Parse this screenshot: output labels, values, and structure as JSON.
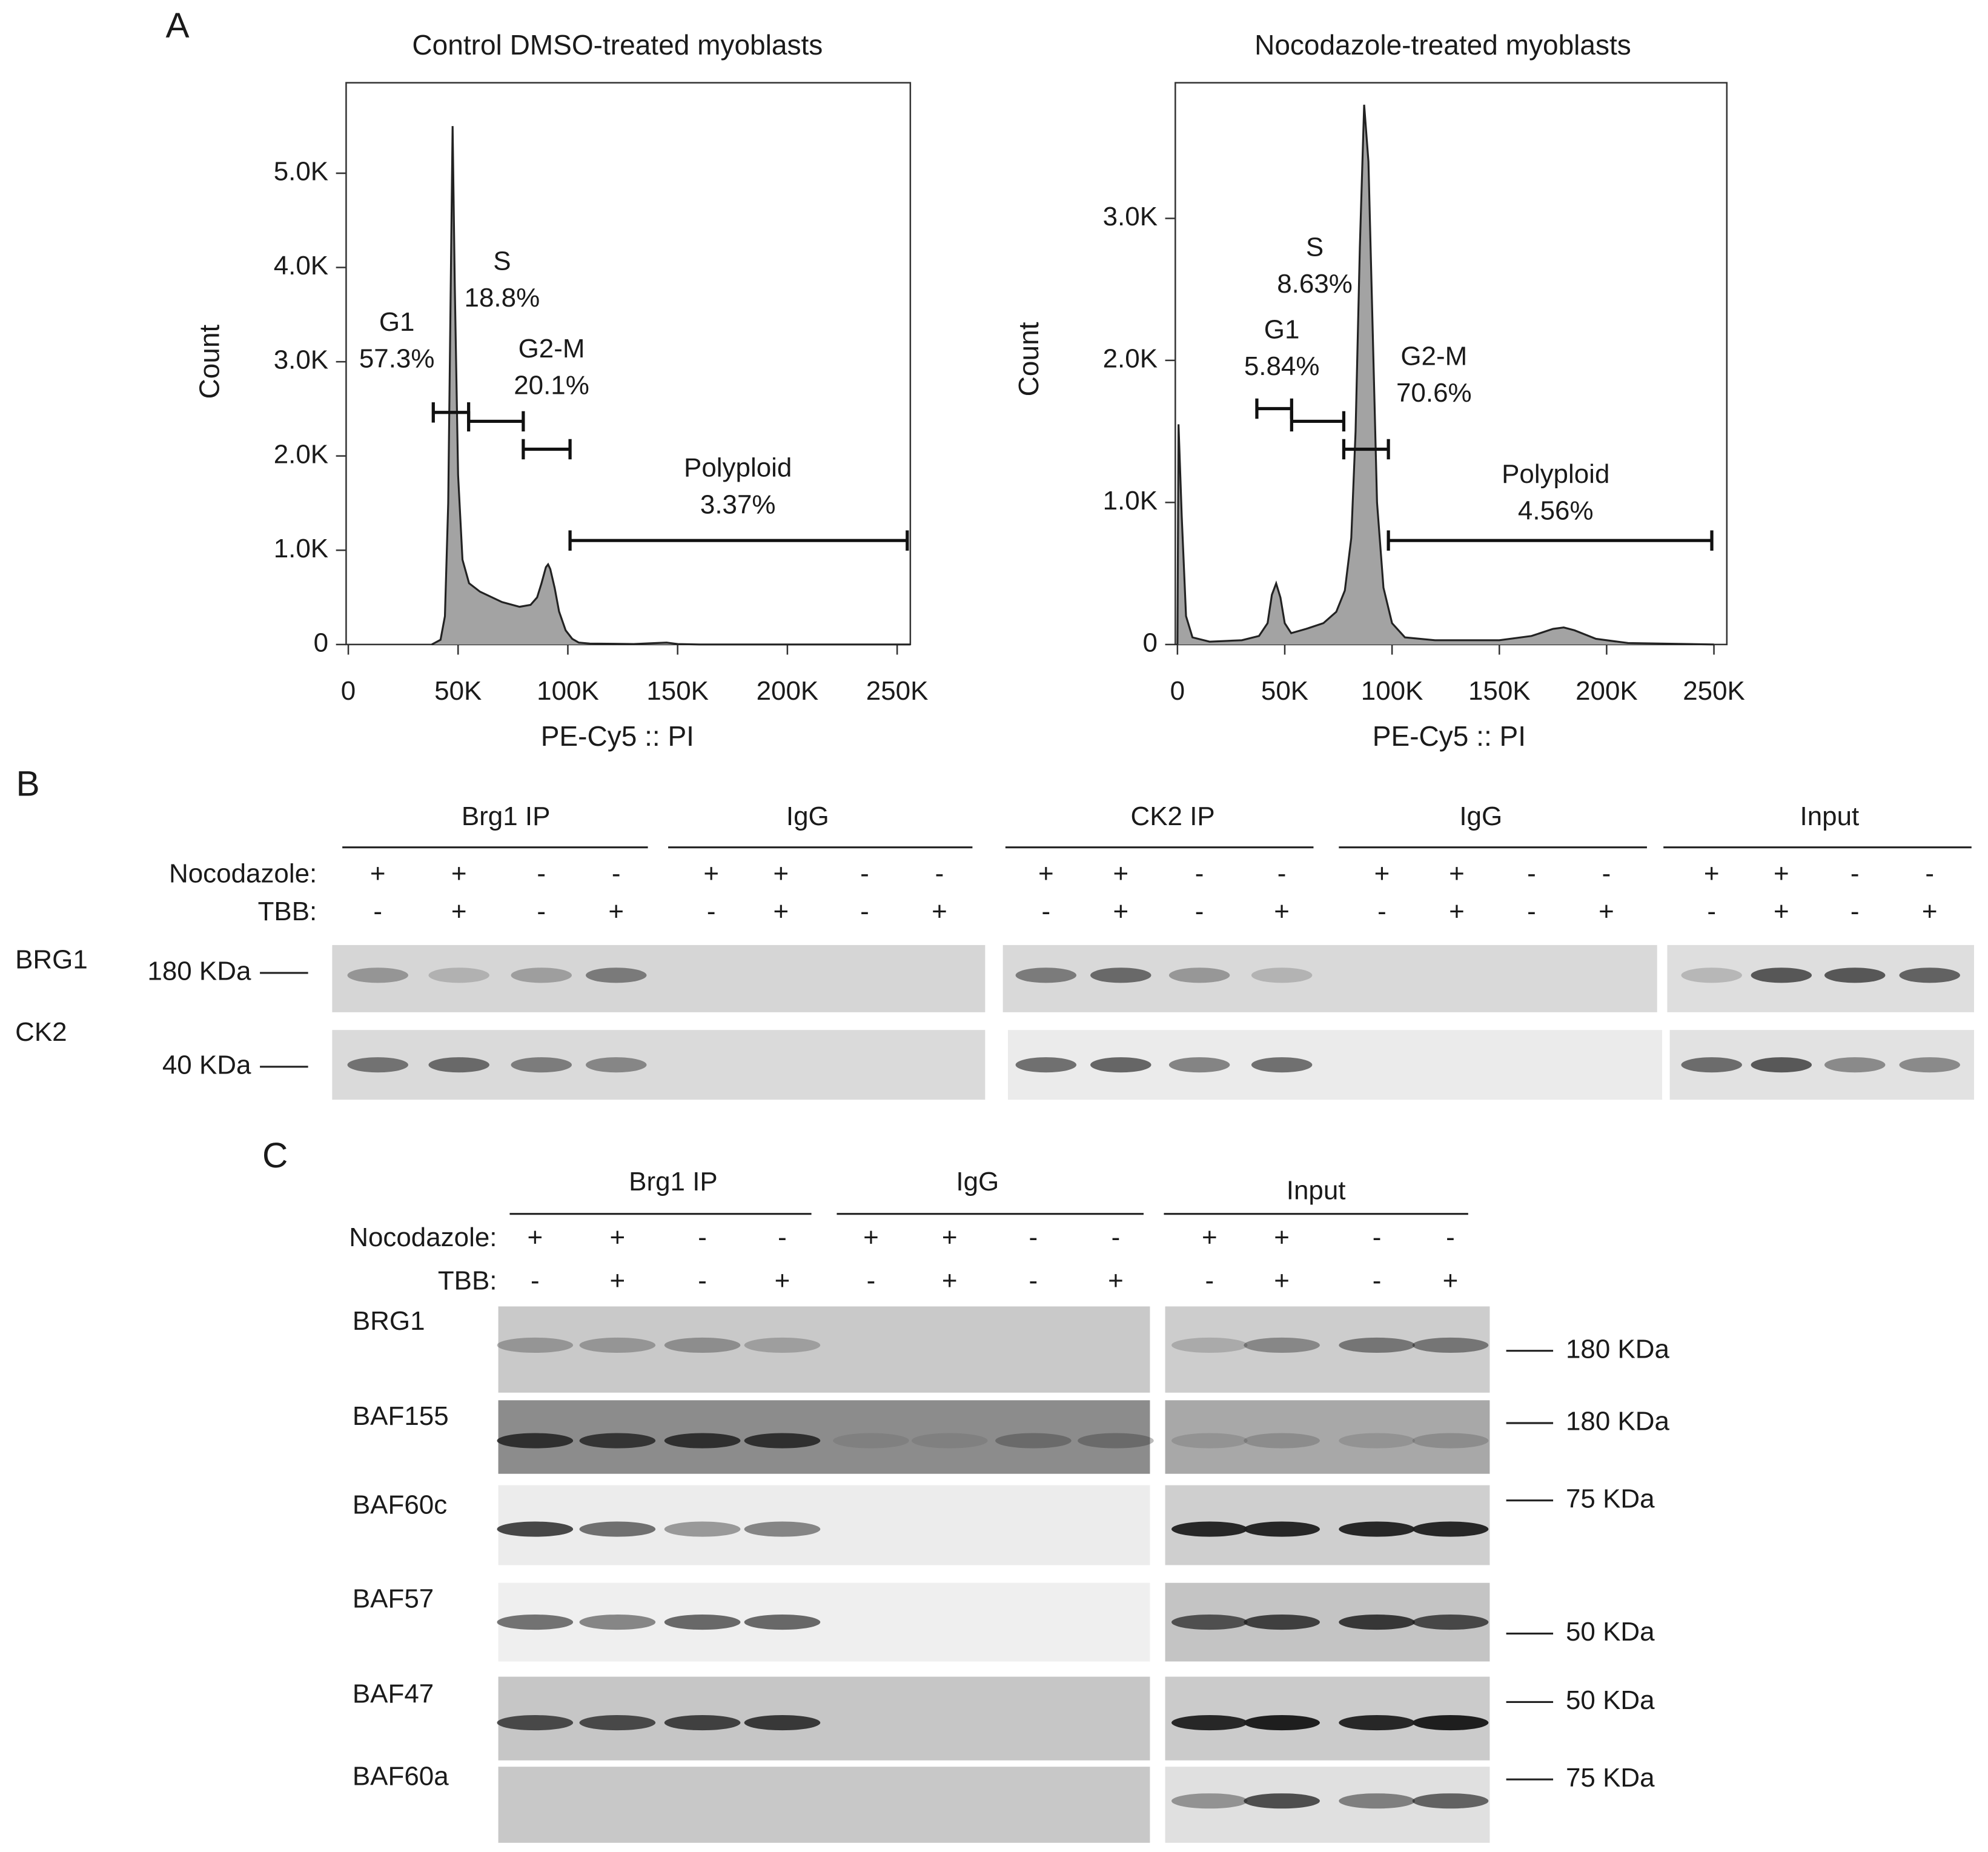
{
  "panel_labels": [
    "A",
    "B",
    "C"
  ],
  "chart_data": [
    {
      "type": "area",
      "title": "Control DMSO-treated myoblasts",
      "xlabel": "PE-Cy5 :: PI",
      "ylabel": "Count",
      "x": [
        38000,
        42000,
        44000,
        45500,
        46500,
        47500,
        48500,
        50000,
        52000,
        55000,
        60000,
        70000,
        78000,
        83000,
        86000,
        88000,
        90000,
        91000,
        92000,
        94000,
        96000,
        99000,
        102000,
        105000,
        110000,
        130000,
        140000,
        145000,
        150000,
        160000,
        256000
      ],
      "values": [
        0,
        50,
        300,
        1500,
        3500,
        5500,
        3800,
        1800,
        900,
        650,
        560,
        450,
        400,
        420,
        500,
        650,
        820,
        850,
        800,
        600,
        350,
        150,
        60,
        20,
        10,
        5,
        15,
        20,
        5,
        0,
        0
      ],
      "color": "#a3a3a3",
      "xlim": [
        -1000,
        256000
      ],
      "ylim": [
        0,
        5960
      ],
      "xticks": [
        0,
        {
          "value": 50000,
          "label": "50K"
        },
        {
          "value": 100000,
          "label": "100K"
        },
        {
          "value": 150000,
          "label": "150K"
        },
        {
          "value": 200000,
          "label": "200K"
        },
        {
          "value": 250000,
          "label": "250K"
        }
      ],
      "yticks": [
        0,
        {
          "value": 1000,
          "label": "1.0K"
        },
        {
          "value": 2000,
          "label": "2.0K"
        },
        {
          "value": 3000,
          "label": "3.0K"
        },
        {
          "value": 4000,
          "label": "4.0K"
        },
        {
          "value": 5000,
          "label": "5.0K"
        }
      ],
      "gates": [
        {
          "name": "G1",
          "percent": "57.3%",
          "range": [
            38700,
            54800
          ]
        },
        {
          "name": "S",
          "percent": "18.8%",
          "range": [
            54800,
            79700
          ]
        },
        {
          "name": "G2-M",
          "percent": "20.1%",
          "range": [
            79700,
            101000
          ]
        },
        {
          "name": "Polyploid",
          "percent": "3.37%",
          "range": [
            101000,
            254600
          ]
        }
      ]
    },
    {
      "type": "area",
      "title": "Nocodazole-treated myoblasts",
      "xlabel": "PE-Cy5 :: PI",
      "ylabel": "Count",
      "x": [
        0,
        500,
        2000,
        4000,
        7000,
        15000,
        30000,
        38000,
        42000,
        44000,
        46000,
        48000,
        50000,
        53000,
        60000,
        68000,
        74000,
        78000,
        81000,
        83000,
        85000,
        87000,
        89000,
        91000,
        93000,
        96000,
        100000,
        106000,
        120000,
        150000,
        165000,
        175000,
        180000,
        185000,
        195000,
        210000,
        250000
      ],
      "values": [
        0,
        1550,
        900,
        200,
        50,
        20,
        30,
        60,
        150,
        350,
        430,
        330,
        150,
        80,
        110,
        150,
        230,
        380,
        750,
        1500,
        2800,
        3800,
        3400,
        2200,
        1000,
        400,
        150,
        50,
        30,
        30,
        60,
        110,
        120,
        100,
        40,
        10,
        0
      ],
      "color": "#a3a3a3",
      "xlim": [
        -1000,
        256000
      ],
      "ylim": [
        0,
        3955
      ],
      "xticks": [
        0,
        {
          "value": 50000,
          "label": "50K"
        },
        {
          "value": 100000,
          "label": "100K"
        },
        {
          "value": 150000,
          "label": "150K"
        },
        {
          "value": 200000,
          "label": "200K"
        },
        {
          "value": 250000,
          "label": "250K"
        }
      ],
      "yticks": [
        0,
        {
          "value": 1000,
          "label": "1.0K"
        },
        {
          "value": 2000,
          "label": "2.0K"
        },
        {
          "value": 3000,
          "label": "3.0K"
        }
      ],
      "gates": [
        {
          "name": "G1",
          "percent": "5.84%",
          "range": [
            37000,
            53200
          ]
        },
        {
          "name": "S",
          "percent": "8.63%",
          "range": [
            53200,
            77500
          ]
        },
        {
          "name": "G2-M",
          "percent": "70.6%",
          "range": [
            77500,
            98300
          ]
        },
        {
          "name": "Polyploid",
          "percent": "4.56%",
          "range": [
            98300,
            249000
          ]
        }
      ]
    }
  ],
  "panel_b": {
    "groups": [
      "Brg1 IP",
      "IgG",
      "CK2 IP",
      "IgG",
      "Input"
    ],
    "row_labels": [
      "Nocodazole:",
      "TBB:"
    ],
    "nocodazole": [
      "+",
      "+",
      "-",
      "-",
      "+",
      "+",
      "-",
      "-",
      "+",
      "+",
      "-",
      "-",
      "+",
      "+",
      "-",
      "-",
      "+",
      "+",
      "-",
      "-"
    ],
    "tbb": [
      "-",
      "+",
      "-",
      "+",
      "-",
      "+",
      "-",
      "+",
      "-",
      "+",
      "-",
      "+",
      "-",
      "+",
      "-",
      "+",
      "-",
      "+",
      "-",
      "+"
    ],
    "blots": [
      {
        "protein": "BRG1",
        "marker": "180 KDa"
      },
      {
        "protein": "CK2",
        "marker": "40 KDa"
      }
    ]
  },
  "panel_c": {
    "groups": [
      "Brg1 IP",
      "IgG",
      "Input"
    ],
    "row_labels": [
      "Nocodazole:",
      "TBB:"
    ],
    "nocodazole": [
      "+",
      "+",
      "-",
      "-",
      "+",
      "+",
      "-",
      "-",
      "+",
      "+",
      "-",
      "-"
    ],
    "tbb": [
      "-",
      "+",
      "-",
      "+",
      "-",
      "+",
      "-",
      "+",
      "-",
      "+",
      "-",
      "+"
    ],
    "blots": [
      {
        "protein": "BRG1",
        "marker": "180 KDa"
      },
      {
        "protein": "BAF155",
        "marker": "180 KDa"
      },
      {
        "protein": "BAF60c",
        "marker": "75 KDa"
      },
      {
        "protein": "BAF57",
        "marker": "50 KDa"
      },
      {
        "protein": "BAF47",
        "marker": "50 KDa"
      },
      {
        "protein": "BAF60a",
        "marker": "75 KDa"
      }
    ]
  }
}
